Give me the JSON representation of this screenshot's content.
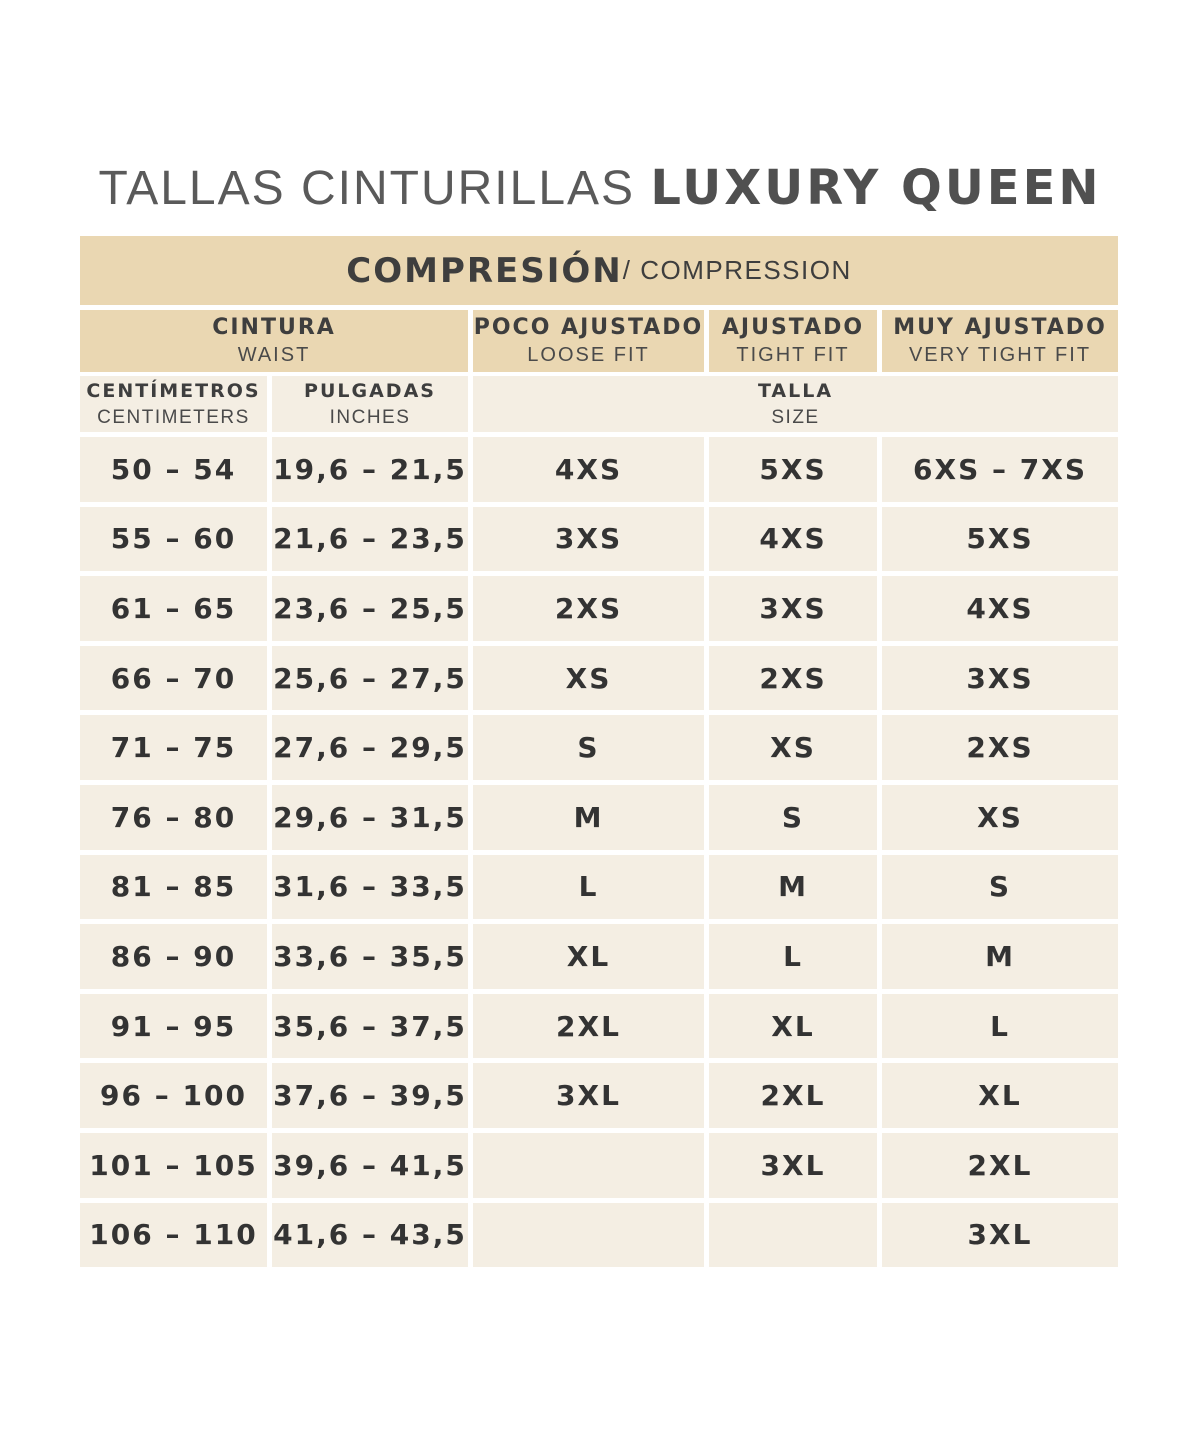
{
  "title": {
    "light": "TALLAS CINTURILLAS ",
    "bold": "LUXURY QUEEN"
  },
  "compression": {
    "main": "COMPRESIÓN",
    "sub": " / COMPRESSION"
  },
  "headers": {
    "waist": {
      "main": "CINTURA",
      "sub": "WAIST"
    },
    "loose": {
      "main": "POCO AJUSTADO",
      "sub": "LOOSE FIT"
    },
    "tight": {
      "main": "AJUSTADO",
      "sub": "TIGHT FIT"
    },
    "very_tight": {
      "main": "MUY AJUSTADO",
      "sub": "VERY TIGHT FIT"
    },
    "centimeters": {
      "main": "CENTÍMETROS",
      "sub": "CENTIMETERS"
    },
    "inches": {
      "main": "PULGADAS",
      "sub": "INCHES"
    },
    "size": {
      "main": "TALLA",
      "sub": "SIZE"
    }
  },
  "rows": [
    [
      "50 – 54",
      "19,6 – 21,5",
      "4XS",
      "5XS",
      "6XS – 7XS"
    ],
    [
      "55 – 60",
      "21,6 – 23,5",
      "3XS",
      "4XS",
      "5XS"
    ],
    [
      "61 – 65",
      "23,6 – 25,5",
      "2XS",
      "3XS",
      "4XS"
    ],
    [
      "66 – 70",
      "25,6 – 27,5",
      "XS",
      "2XS",
      "3XS"
    ],
    [
      "71 – 75",
      "27,6 – 29,5",
      "S",
      "XS",
      "2XS"
    ],
    [
      "76 – 80",
      "29,6 – 31,5",
      "M",
      "S",
      "XS"
    ],
    [
      "81 – 85",
      "31,6 – 33,5",
      "L",
      "M",
      "S"
    ],
    [
      "86 – 90",
      "33,6 – 35,5",
      "XL",
      "L",
      "M"
    ],
    [
      "91 – 95",
      "35,6 – 37,5",
      "2XL",
      "XL",
      "L"
    ],
    [
      "96 – 100",
      "37,6 – 39,5",
      "3XL",
      "2XL",
      "XL"
    ],
    [
      "101 – 105",
      "39,6 – 41,5",
      "",
      "3XL",
      "2XL"
    ],
    [
      "106 – 110",
      "41,6 – 43,5",
      "",
      "",
      "3XL"
    ]
  ],
  "colors": {
    "header_gold": "#ead7b2",
    "cell_cream": "#f4eee3",
    "text_dark": "#3a3a3a"
  }
}
